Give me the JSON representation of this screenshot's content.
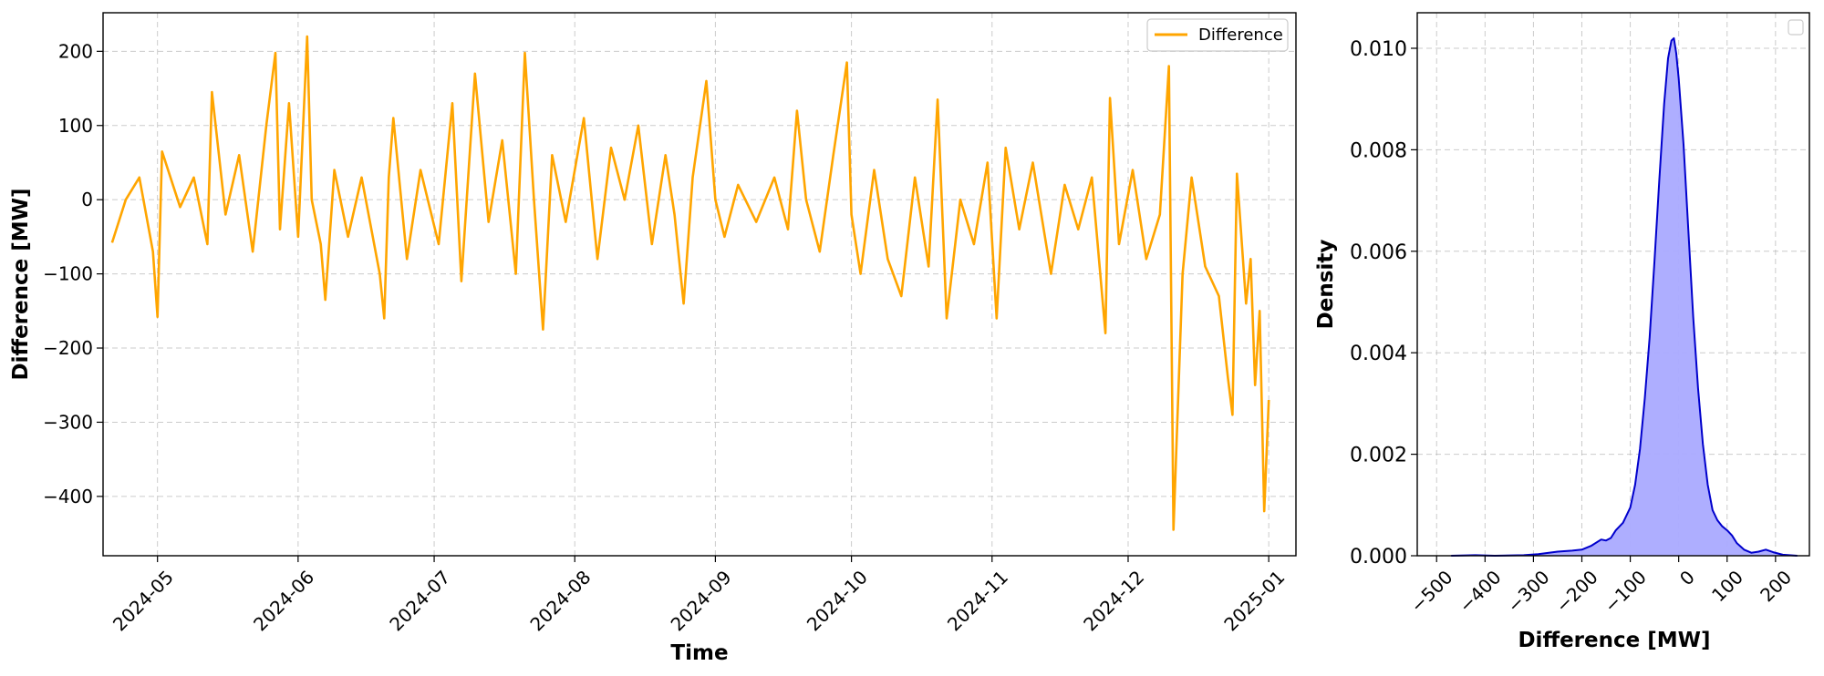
{
  "chart_data": [
    {
      "type": "line",
      "xlabel": "Time",
      "ylabel": "Difference [MW]",
      "x_tick_labels": [
        "2024-05",
        "2024-06",
        "2024-07",
        "2024-08",
        "2024-09",
        "2024-10",
        "2024-11",
        "2024-12",
        "2025-01"
      ],
      "y_tick_labels": [
        "−400",
        "−300",
        "−200",
        "−100",
        "0",
        "100",
        "200"
      ],
      "y_ticks": [
        -400,
        -300,
        -200,
        -100,
        0,
        100,
        200
      ],
      "xlim": [
        "2024-04-19",
        "2025-01-07"
      ],
      "ylim": [
        -480,
        252
      ],
      "grid": true,
      "legend": "top-right",
      "series": [
        {
          "name": "Difference",
          "color": "#FFA500",
          "points": [
            [
              "2024-04-21",
              -58
            ],
            [
              "2024-04-24",
              0
            ],
            [
              "2024-04-27",
              30
            ],
            [
              "2024-04-30",
              -70
            ],
            [
              "2024-05-01",
              -158
            ],
            [
              "2024-05-02",
              65
            ],
            [
              "2024-05-06",
              -10
            ],
            [
              "2024-05-09",
              30
            ],
            [
              "2024-05-12",
              -60
            ],
            [
              "2024-05-13",
              145
            ],
            [
              "2024-05-16",
              -20
            ],
            [
              "2024-05-19",
              60
            ],
            [
              "2024-05-22",
              -70
            ],
            [
              "2024-05-25",
              100
            ],
            [
              "2024-05-27",
              198
            ],
            [
              "2024-05-28",
              -40
            ],
            [
              "2024-05-30",
              130
            ],
            [
              "2024-06-01",
              -50
            ],
            [
              "2024-06-03",
              220
            ],
            [
              "2024-06-04",
              0
            ],
            [
              "2024-06-06",
              -60
            ],
            [
              "2024-06-07",
              -135
            ],
            [
              "2024-06-09",
              40
            ],
            [
              "2024-06-12",
              -50
            ],
            [
              "2024-06-15",
              30
            ],
            [
              "2024-06-19",
              -100
            ],
            [
              "2024-06-20",
              -160
            ],
            [
              "2024-06-21",
              30
            ],
            [
              "2024-06-22",
              110
            ],
            [
              "2024-06-25",
              -80
            ],
            [
              "2024-06-28",
              40
            ],
            [
              "2024-07-02",
              -60
            ],
            [
              "2024-07-05",
              130
            ],
            [
              "2024-07-07",
              -110
            ],
            [
              "2024-07-10",
              170
            ],
            [
              "2024-07-13",
              -30
            ],
            [
              "2024-07-16",
              80
            ],
            [
              "2024-07-19",
              -100
            ],
            [
              "2024-07-21",
              198
            ],
            [
              "2024-07-23",
              0
            ],
            [
              "2024-07-25",
              -175
            ],
            [
              "2024-07-27",
              60
            ],
            [
              "2024-07-30",
              -30
            ],
            [
              "2024-08-03",
              110
            ],
            [
              "2024-08-06",
              -80
            ],
            [
              "2024-08-09",
              70
            ],
            [
              "2024-08-12",
              0
            ],
            [
              "2024-08-15",
              100
            ],
            [
              "2024-08-18",
              -60
            ],
            [
              "2024-08-21",
              60
            ],
            [
              "2024-08-23",
              -20
            ],
            [
              "2024-08-25",
              -140
            ],
            [
              "2024-08-27",
              30
            ],
            [
              "2024-08-30",
              160
            ],
            [
              "2024-09-01",
              0
            ],
            [
              "2024-09-03",
              -50
            ],
            [
              "2024-09-06",
              20
            ],
            [
              "2024-09-10",
              -30
            ],
            [
              "2024-09-14",
              30
            ],
            [
              "2024-09-17",
              -40
            ],
            [
              "2024-09-19",
              120
            ],
            [
              "2024-09-21",
              0
            ],
            [
              "2024-09-24",
              -70
            ],
            [
              "2024-09-27",
              60
            ],
            [
              "2024-09-30",
              185
            ],
            [
              "2024-10-01",
              -20
            ],
            [
              "2024-10-03",
              -100
            ],
            [
              "2024-10-06",
              40
            ],
            [
              "2024-10-09",
              -80
            ],
            [
              "2024-10-12",
              -130
            ],
            [
              "2024-10-15",
              30
            ],
            [
              "2024-10-18",
              -90
            ],
            [
              "2024-10-20",
              135
            ],
            [
              "2024-10-22",
              -160
            ],
            [
              "2024-10-25",
              0
            ],
            [
              "2024-10-28",
              -60
            ],
            [
              "2024-10-31",
              50
            ],
            [
              "2024-11-02",
              -160
            ],
            [
              "2024-11-04",
              70
            ],
            [
              "2024-11-07",
              -40
            ],
            [
              "2024-11-10",
              50
            ],
            [
              "2024-11-14",
              -100
            ],
            [
              "2024-11-17",
              20
            ],
            [
              "2024-11-20",
              -40
            ],
            [
              "2024-11-23",
              30
            ],
            [
              "2024-11-26",
              -180
            ],
            [
              "2024-11-27",
              137
            ],
            [
              "2024-11-29",
              -60
            ],
            [
              "2024-12-02",
              40
            ],
            [
              "2024-12-05",
              -80
            ],
            [
              "2024-12-08",
              -20
            ],
            [
              "2024-12-10",
              180
            ],
            [
              "2024-12-11",
              -445
            ],
            [
              "2024-12-13",
              -100
            ],
            [
              "2024-12-15",
              30
            ],
            [
              "2024-12-18",
              -90
            ],
            [
              "2024-12-21",
              -130
            ],
            [
              "2024-12-23",
              -240
            ],
            [
              "2024-12-24",
              -290
            ],
            [
              "2024-12-25",
              35
            ],
            [
              "2024-12-27",
              -140
            ],
            [
              "2024-12-28",
              -80
            ],
            [
              "2024-12-29",
              -250
            ],
            [
              "2024-12-30",
              -150
            ],
            [
              "2024-12-31",
              -420
            ],
            [
              "2025-01-01",
              -270
            ]
          ]
        }
      ]
    },
    {
      "type": "area",
      "xlabel": "Difference [MW]",
      "ylabel": "Density",
      "x_ticks": [
        -500,
        -400,
        -300,
        -200,
        -100,
        0,
        100,
        200
      ],
      "x_tick_labels": [
        "−500",
        "−400",
        "−300",
        "−200",
        "−100",
        "0",
        "100",
        "200"
      ],
      "y_ticks": [
        0,
        0.002,
        0.004,
        0.006,
        0.008,
        0.01
      ],
      "y_tick_labels": [
        "0.000",
        "0.002",
        "0.004",
        "0.006",
        "0.008",
        "0.010"
      ],
      "xlim": [
        -540,
        270
      ],
      "ylim": [
        0,
        0.0107
      ],
      "grid": true,
      "legend": "top-right",
      "series": [
        {
          "color": "#0000CC",
          "fill": "#AAAAFF",
          "points": [
            [
              -470,
              0.0
            ],
            [
              -420,
              1e-05
            ],
            [
              -380,
              0.0
            ],
            [
              -320,
              1e-05
            ],
            [
              -290,
              3e-05
            ],
            [
              -250,
              8e-05
            ],
            [
              -220,
              0.0001
            ],
            [
              -200,
              0.00012
            ],
            [
              -180,
              0.0002
            ],
            [
              -160,
              0.00032
            ],
            [
              -150,
              0.0003
            ],
            [
              -140,
              0.00035
            ],
            [
              -130,
              0.0005
            ],
            [
              -115,
              0.00065
            ],
            [
              -100,
              0.00095
            ],
            [
              -90,
              0.0014
            ],
            [
              -80,
              0.0021
            ],
            [
              -70,
              0.0031
            ],
            [
              -60,
              0.0043
            ],
            [
              -50,
              0.0058
            ],
            [
              -40,
              0.0074
            ],
            [
              -30,
              0.0089
            ],
            [
              -22,
              0.0098
            ],
            [
              -15,
              0.01015
            ],
            [
              -10,
              0.0102
            ],
            [
              -5,
              0.0099
            ],
            [
              0,
              0.0094
            ],
            [
              10,
              0.0081
            ],
            [
              20,
              0.0064
            ],
            [
              30,
              0.0047
            ],
            [
              40,
              0.0033
            ],
            [
              50,
              0.0022
            ],
            [
              60,
              0.0014
            ],
            [
              70,
              0.0009
            ],
            [
              80,
              0.0007
            ],
            [
              90,
              0.00058
            ],
            [
              100,
              0.0005
            ],
            [
              110,
              0.0004
            ],
            [
              120,
              0.00025
            ],
            [
              135,
              0.00012
            ],
            [
              150,
              6e-05
            ],
            [
              165,
              8e-05
            ],
            [
              180,
              0.00012
            ],
            [
              195,
              7e-05
            ],
            [
              215,
              2e-05
            ],
            [
              245,
              0.0
            ]
          ]
        }
      ]
    }
  ]
}
